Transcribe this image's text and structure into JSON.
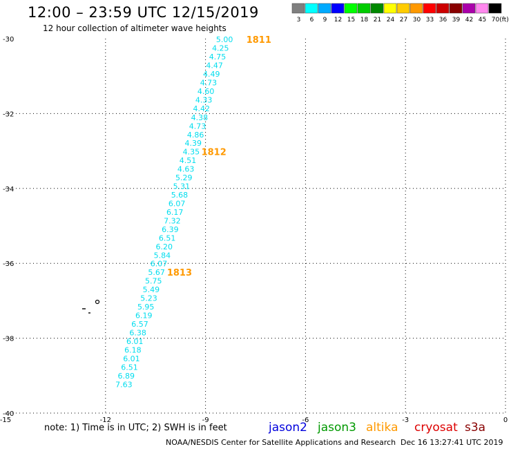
{
  "header": {
    "title": "12:00 – 23:59 UTC 12/15/2019",
    "subtitle": "12 hour collection of altimeter wave heights"
  },
  "legend": {
    "unit": "(ft)",
    "bins": [
      {
        "label": "3",
        "color": "#7f7f7f"
      },
      {
        "label": "6",
        "color": "#00ffff"
      },
      {
        "label": "9",
        "color": "#00aaff"
      },
      {
        "label": "12",
        "color": "#0000ff"
      },
      {
        "label": "15",
        "color": "#00ff00"
      },
      {
        "label": "18",
        "color": "#00cc00"
      },
      {
        "label": "21",
        "color": "#008800"
      },
      {
        "label": "24",
        "color": "#ffff00"
      },
      {
        "label": "27",
        "color": "#ffcc00"
      },
      {
        "label": "30",
        "color": "#ff9900"
      },
      {
        "label": "33",
        "color": "#ff0000"
      },
      {
        "label": "36",
        "color": "#cc0000"
      },
      {
        "label": "39",
        "color": "#880000"
      },
      {
        "label": "42",
        "color": "#aa00aa"
      },
      {
        "label": "45",
        "color": "#ff88ee"
      },
      {
        "label": "70",
        "color": "#000000"
      }
    ]
  },
  "chart_data": {
    "type": "scatter",
    "xlim": [
      -15,
      0
    ],
    "ylim": [
      -40,
      -30
    ],
    "x_ticks": [
      "-15",
      "-12",
      "-9",
      "-6",
      "-3",
      "0"
    ],
    "x_tick_values": [
      -15,
      -12,
      -9,
      -6,
      -3,
      0
    ],
    "y_ticks": [
      "-30",
      "-32",
      "-34",
      "-36",
      "-38",
      "-40"
    ],
    "y_tick_values": [
      -30,
      -32,
      -34,
      -36,
      -38,
      -40
    ],
    "grid": true,
    "series_color": "#00ddee",
    "time_label_color": "#ff9900",
    "points": [
      {
        "lon": -8.43,
        "lat": -30.02,
        "label": "5.00"
      },
      {
        "lon": -8.55,
        "lat": -30.25,
        "label": "4.25"
      },
      {
        "lon": -8.64,
        "lat": -30.48,
        "label": "4.75"
      },
      {
        "lon": -8.73,
        "lat": -30.71,
        "label": "4.47"
      },
      {
        "lon": -8.82,
        "lat": -30.94,
        "label": "4.49"
      },
      {
        "lon": -8.91,
        "lat": -31.17,
        "label": "4.73"
      },
      {
        "lon": -8.99,
        "lat": -31.4,
        "label": "4.60"
      },
      {
        "lon": -9.05,
        "lat": -31.63,
        "label": "4.33"
      },
      {
        "lon": -9.12,
        "lat": -31.86,
        "label": "4.42"
      },
      {
        "lon": -9.18,
        "lat": -32.1,
        "label": "4.38"
      },
      {
        "lon": -9.24,
        "lat": -32.33,
        "label": "4.73"
      },
      {
        "lon": -9.3,
        "lat": -32.56,
        "label": "4.86"
      },
      {
        "lon": -9.37,
        "lat": -32.79,
        "label": "4.39"
      },
      {
        "lon": -9.43,
        "lat": -33.02,
        "label": "4.35"
      },
      {
        "lon": -9.53,
        "lat": -33.25,
        "label": "4.51"
      },
      {
        "lon": -9.59,
        "lat": -33.48,
        "label": "4.63"
      },
      {
        "lon": -9.65,
        "lat": -33.71,
        "label": "5.29"
      },
      {
        "lon": -9.72,
        "lat": -33.94,
        "label": "5.31"
      },
      {
        "lon": -9.78,
        "lat": -34.17,
        "label": "5.68"
      },
      {
        "lon": -9.86,
        "lat": -34.4,
        "label": "6.07"
      },
      {
        "lon": -9.92,
        "lat": -34.63,
        "label": "6.17"
      },
      {
        "lon": -10.0,
        "lat": -34.86,
        "label": "7.32"
      },
      {
        "lon": -10.06,
        "lat": -35.09,
        "label": "6.39"
      },
      {
        "lon": -10.15,
        "lat": -35.32,
        "label": "6.51"
      },
      {
        "lon": -10.24,
        "lat": -35.55,
        "label": "6.20"
      },
      {
        "lon": -10.3,
        "lat": -35.78,
        "label": "5.84"
      },
      {
        "lon": -10.4,
        "lat": -36.01,
        "label": "6.07"
      },
      {
        "lon": -10.47,
        "lat": -36.24,
        "label": "5.67"
      },
      {
        "lon": -10.56,
        "lat": -36.47,
        "label": "5.75"
      },
      {
        "lon": -10.63,
        "lat": -36.7,
        "label": "5.49"
      },
      {
        "lon": -10.7,
        "lat": -36.93,
        "label": "5.23"
      },
      {
        "lon": -10.79,
        "lat": -37.16,
        "label": "5.95"
      },
      {
        "lon": -10.85,
        "lat": -37.39,
        "label": "6.19"
      },
      {
        "lon": -10.97,
        "lat": -37.62,
        "label": "6.57"
      },
      {
        "lon": -11.03,
        "lat": -37.85,
        "label": "6.38"
      },
      {
        "lon": -11.12,
        "lat": -38.08,
        "label": "6.01"
      },
      {
        "lon": -11.18,
        "lat": -38.31,
        "label": "6.18"
      },
      {
        "lon": -11.22,
        "lat": -38.54,
        "label": "6.01"
      },
      {
        "lon": -11.28,
        "lat": -38.77,
        "label": "6.51"
      },
      {
        "lon": -11.38,
        "lat": -39.0,
        "label": "6.89"
      },
      {
        "lon": -11.45,
        "lat": -39.23,
        "label": "7.63"
      }
    ],
    "time_labels": [
      {
        "lon": -7.4,
        "lat": -30.02,
        "label": "1811"
      },
      {
        "lon": -8.75,
        "lat": -33.02,
        "label": "1812"
      },
      {
        "lon": -9.78,
        "lat": -36.24,
        "label": "1813"
      }
    ]
  },
  "footer": {
    "note": "note:  1) Time is in UTC;  2) SWH is in feet",
    "missions": [
      {
        "label": "jason2",
        "color": "#0000dd"
      },
      {
        "label": "jason3",
        "color": "#009900"
      },
      {
        "label": "altika",
        "color": "#ff9900"
      },
      {
        "label": "cryosat",
        "color": "#dd0000"
      },
      {
        "label": "s3a",
        "color": "#880000"
      }
    ],
    "credit": "NOAA/NESDIS Center for Satellite Applications and Research",
    "timestamp": "Dec 16 13:27:41 UTC 2019"
  }
}
